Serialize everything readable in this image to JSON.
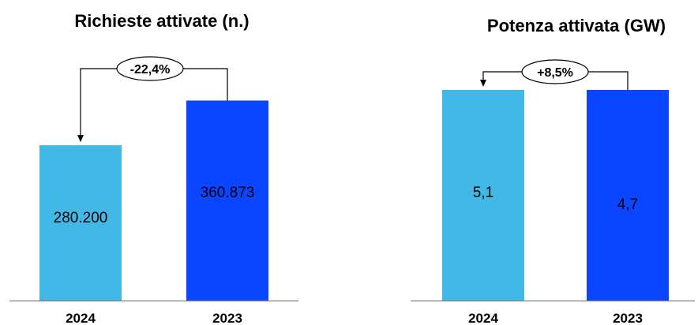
{
  "colors": {
    "bar_2024": "#41b8e6",
    "bar_2023": "#0a46ff",
    "axis": "#808080",
    "connector": "#000000"
  },
  "chart_data": [
    {
      "type": "bar",
      "title": "Richieste attivate (n.)",
      "categories": [
        "2024",
        "2023"
      ],
      "values": [
        280200,
        360873
      ],
      "value_labels": [
        "280.200",
        "360.873"
      ],
      "change_label": "-22,4%",
      "ylim": [
        0,
        380000
      ],
      "grid": false,
      "legend": "none"
    },
    {
      "type": "bar",
      "title": "Potenza attivata (GW)",
      "categories": [
        "2024",
        "2023"
      ],
      "values": [
        5.1,
        4.7
      ],
      "value_labels": [
        "5,1",
        "4,7"
      ],
      "change_label": "+8,5%",
      "ylim": [
        0,
        3.8
      ],
      "grid": false,
      "legend": "none"
    }
  ]
}
